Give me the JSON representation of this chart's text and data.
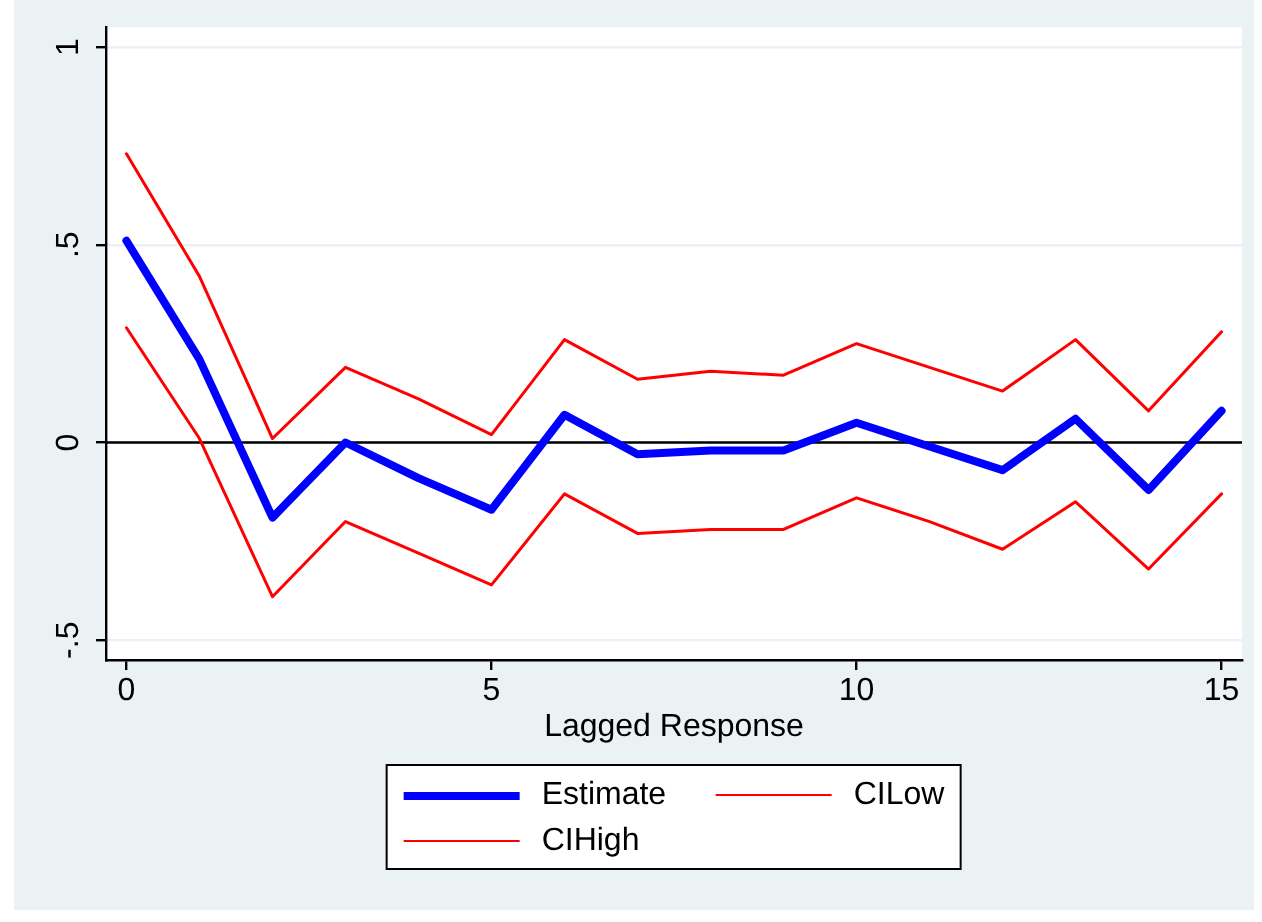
{
  "chart_data": {
    "type": "line",
    "xlabel": "Lagged Response",
    "x": [
      0,
      1,
      2,
      3,
      4,
      5,
      6,
      7,
      8,
      9,
      10,
      11,
      12,
      13,
      14,
      15
    ],
    "series": [
      {
        "name": "Estimate",
        "color": "#0000ff",
        "values": [
          0.51,
          0.21,
          -0.19,
          0.0,
          -0.09,
          -0.17,
          0.07,
          -0.03,
          -0.02,
          -0.02,
          0.05,
          -0.01,
          -0.07,
          0.06,
          -0.12,
          0.08
        ]
      },
      {
        "name": "CILow",
        "color": "#ff0000",
        "values": [
          0.29,
          0.01,
          -0.39,
          -0.2,
          -0.28,
          -0.36,
          -0.13,
          -0.23,
          -0.22,
          -0.22,
          -0.14,
          -0.2,
          -0.27,
          -0.15,
          -0.32,
          -0.13
        ]
      },
      {
        "name": "CIHigh",
        "color": "#ff0000",
        "values": [
          0.73,
          0.42,
          0.01,
          0.19,
          0.11,
          0.02,
          0.26,
          0.16,
          0.18,
          0.17,
          0.25,
          0.19,
          0.13,
          0.26,
          0.08,
          0.28
        ]
      }
    ],
    "xlim": [
      -0.28,
      15.28
    ],
    "ylim": [
      -0.55,
      1.05
    ],
    "xticks": [
      0,
      5,
      10,
      15
    ],
    "yticks": [
      {
        "value": -0.5,
        "label": "-.5"
      },
      {
        "value": 0,
        "label": "0"
      },
      {
        "value": 0.5,
        "label": ".5"
      },
      {
        "value": 1,
        "label": "1"
      }
    ],
    "grid": "y",
    "legend": "bottom",
    "marker": "none",
    "ref_lines": [
      {
        "axis": "y",
        "value": 0,
        "color": "#000000"
      }
    ]
  }
}
